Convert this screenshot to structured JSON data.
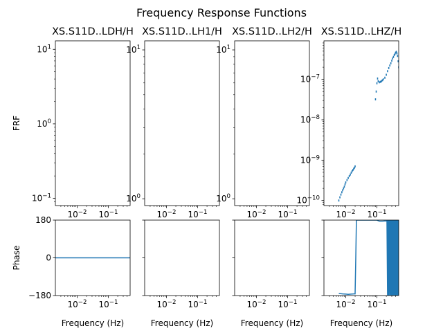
{
  "suptitle": "Frequency Response Functions",
  "colors": {
    "series": "#1f77b4"
  },
  "chart_data": [
    {
      "id": "amp0",
      "type": "line",
      "title": "XS.S11D..LDH/H",
      "ylabel": "FRF",
      "yscale": "log",
      "xscale": "log",
      "xlim": [
        0.002,
        0.5
      ],
      "ylim": [
        0.08,
        13
      ],
      "yticks": [
        {
          "v": 0.1,
          "t": "10",
          "e": "−1"
        },
        {
          "v": 1,
          "t": "10",
          "e": "0"
        },
        {
          "v": 10,
          "t": "10",
          "e": "1"
        }
      ],
      "xticks": [
        {
          "v": 0.01,
          "t": "10",
          "e": "−2"
        },
        {
          "v": 0.1,
          "t": "10",
          "e": "−1"
        }
      ],
      "series": []
    },
    {
      "id": "amp1",
      "type": "line",
      "title": "XS.S11D..LH1/H",
      "ylabel": "",
      "yscale": "log",
      "xscale": "log",
      "xlim": [
        0.002,
        0.5
      ],
      "ylim": [
        0.9,
        11.5
      ],
      "yticks": [
        {
          "v": 1,
          "t": "10",
          "e": "0"
        },
        {
          "v": 10,
          "t": "10",
          "e": "1"
        }
      ],
      "xticks": [
        {
          "v": 0.01,
          "t": "10",
          "e": "−2"
        },
        {
          "v": 0.1,
          "t": "10",
          "e": "−1"
        }
      ],
      "series": []
    },
    {
      "id": "amp2",
      "type": "line",
      "title": "XS.S11D..LH2/H",
      "ylabel": "",
      "yscale": "log",
      "xscale": "log",
      "xlim": [
        0.002,
        0.5
      ],
      "ylim": [
        0.9,
        11.5
      ],
      "yticks": [
        {
          "v": 1,
          "t": "10",
          "e": "0"
        },
        {
          "v": 10,
          "t": "10",
          "e": "1"
        }
      ],
      "xticks": [
        {
          "v": 0.01,
          "t": "10",
          "e": "−2"
        },
        {
          "v": 0.1,
          "t": "10",
          "e": "−1"
        }
      ],
      "series": []
    },
    {
      "id": "amp3",
      "type": "scatter",
      "title": "XS.S11D..LHZ/H",
      "ylabel": "",
      "yscale": "log",
      "xscale": "log",
      "xlim": [
        0.002,
        0.5
      ],
      "ylim": [
        7.5e-11,
        9e-07
      ],
      "yticks": [
        {
          "v": 1e-10,
          "t": "10",
          "e": "−10"
        },
        {
          "v": 1e-09,
          "t": "10",
          "e": "−9"
        },
        {
          "v": 1e-08,
          "t": "10",
          "e": "−8"
        },
        {
          "v": 1e-07,
          "t": "10",
          "e": "−7"
        }
      ],
      "xticks": [
        {
          "v": 0.01,
          "t": "10",
          "e": "−2"
        },
        {
          "v": 0.1,
          "t": "10",
          "e": "−1"
        }
      ],
      "series": [
        {
          "x": [
            0.006,
            0.0065,
            0.007,
            0.0075,
            0.008,
            0.0085,
            0.009,
            0.0095,
            0.01,
            0.011,
            0.012,
            0.013,
            0.014,
            0.015,
            0.016,
            0.017,
            0.018,
            0.019,
            0.02,
            0.09,
            0.095,
            0.1,
            0.105,
            0.11,
            0.12,
            0.13,
            0.14,
            0.15,
            0.16,
            0.18,
            0.2,
            0.22,
            0.24,
            0.26,
            0.28,
            0.3,
            0.32,
            0.34,
            0.36,
            0.38,
            0.4,
            0.42,
            0.44,
            0.46,
            0.48,
            0.5
          ],
          "y": [
            1e-10,
            1.2e-10,
            1.4e-10,
            1.6e-10,
            1.8e-10,
            2e-10,
            2.2e-10,
            2.5e-10,
            2.8e-10,
            3.2e-10,
            3.6e-10,
            4e-10,
            4.4e-10,
            4.9e-10,
            5.3e-10,
            5.7e-10,
            6.1e-10,
            6.5e-10,
            7e-10,
            3.2e-08,
            5e-08,
            8e-08,
            1.05e-07,
            9e-08,
            8.5e-08,
            8.7e-08,
            9e-08,
            9.5e-08,
            1e-07,
            1.1e-07,
            1.3e-07,
            1.6e-07,
            1.9e-07,
            2.2e-07,
            2.5e-07,
            2.9e-07,
            3.3e-07,
            3.6e-07,
            4e-07,
            4.3e-07,
            4.6e-07,
            4.8e-07,
            4.4e-07,
            3.8e-07,
            2.8e-07,
            2e-07
          ]
        }
      ]
    },
    {
      "id": "ph0",
      "type": "line",
      "title": "",
      "ylabel": "Phase",
      "xlabel": "Frequency (Hz)",
      "yscale": "linear",
      "xscale": "log",
      "xlim": [
        0.002,
        0.5
      ],
      "ylim": [
        -180,
        180
      ],
      "yticks": [
        {
          "v": 180,
          "t": "180"
        },
        {
          "v": 0,
          "t": "0"
        },
        {
          "v": -180,
          "t": "−180"
        }
      ],
      "xticks": [
        {
          "v": 0.01,
          "t": "10",
          "e": "−2"
        },
        {
          "v": 0.1,
          "t": "10",
          "e": "−1"
        }
      ],
      "series": [
        {
          "x": [
            0.002,
            0.5
          ],
          "y": [
            0,
            0
          ]
        }
      ]
    },
    {
      "id": "ph1",
      "type": "line",
      "title": "",
      "ylabel": "",
      "xlabel": "Frequency (Hz)",
      "yscale": "linear",
      "xscale": "log",
      "xlim": [
        0.002,
        0.5
      ],
      "ylim": [
        -180,
        180
      ],
      "yticks": [
        {
          "v": 180,
          "t": ""
        },
        {
          "v": 0,
          "t": ""
        },
        {
          "v": -180,
          "t": ""
        }
      ],
      "xticks": [
        {
          "v": 0.01,
          "t": "10",
          "e": "−2"
        },
        {
          "v": 0.1,
          "t": "10",
          "e": "−1"
        }
      ],
      "series": []
    },
    {
      "id": "ph2",
      "type": "line",
      "title": "",
      "ylabel": "",
      "xlabel": "Frequency (Hz)",
      "yscale": "linear",
      "xscale": "log",
      "xlim": [
        0.002,
        0.5
      ],
      "ylim": [
        -180,
        180
      ],
      "yticks": [
        {
          "v": 180,
          "t": ""
        },
        {
          "v": 0,
          "t": ""
        },
        {
          "v": -180,
          "t": ""
        }
      ],
      "xticks": [
        {
          "v": 0.01,
          "t": "10",
          "e": "−2"
        },
        {
          "v": 0.1,
          "t": "10",
          "e": "−1"
        }
      ],
      "series": []
    },
    {
      "id": "ph3",
      "type": "line",
      "title": "",
      "ylabel": "",
      "xlabel": "Frequency (Hz)",
      "yscale": "linear",
      "xscale": "log",
      "xlim": [
        0.002,
        0.5
      ],
      "ylim": [
        -180,
        180
      ],
      "yticks": [
        {
          "v": 180,
          "t": ""
        },
        {
          "v": 0,
          "t": ""
        },
        {
          "v": -180,
          "t": ""
        }
      ],
      "xticks": [
        {
          "v": 0.01,
          "t": "10",
          "e": "−2"
        },
        {
          "v": 0.1,
          "t": "10",
          "e": "−1"
        }
      ],
      "series": [
        {
          "x": [
            0.006,
            0.008,
            0.01,
            0.012,
            0.015,
            0.018,
            0.02,
            0.021,
            0.022,
            0.05,
            0.08,
            0.1,
            0.12,
            0.15,
            0.18,
            0.2,
            0.21,
            0.22,
            0.225,
            0.23,
            0.235,
            0.24,
            0.25,
            0.26,
            0.27,
            0.28,
            0.29,
            0.3,
            0.31,
            0.32,
            0.33,
            0.34,
            0.35,
            0.36,
            0.37,
            0.38,
            0.39,
            0.4,
            0.41,
            0.42,
            0.43,
            0.44,
            0.45,
            0.46,
            0.47,
            0.48,
            0.49,
            0.5
          ],
          "y": [
            -170,
            -172,
            -173,
            -174,
            -173,
            -172,
            -172,
            0,
            180,
            180,
            180,
            180,
            175,
            175,
            176,
            176,
            178,
            -180,
            180,
            -180,
            180,
            -180,
            180,
            -180,
            180,
            -180,
            180,
            -180,
            180,
            -180,
            180,
            -180,
            180,
            -180,
            180,
            -180,
            180,
            -180,
            180,
            -180,
            180,
            -180,
            180,
            -180,
            180,
            -180,
            180,
            -180
          ]
        }
      ]
    }
  ]
}
